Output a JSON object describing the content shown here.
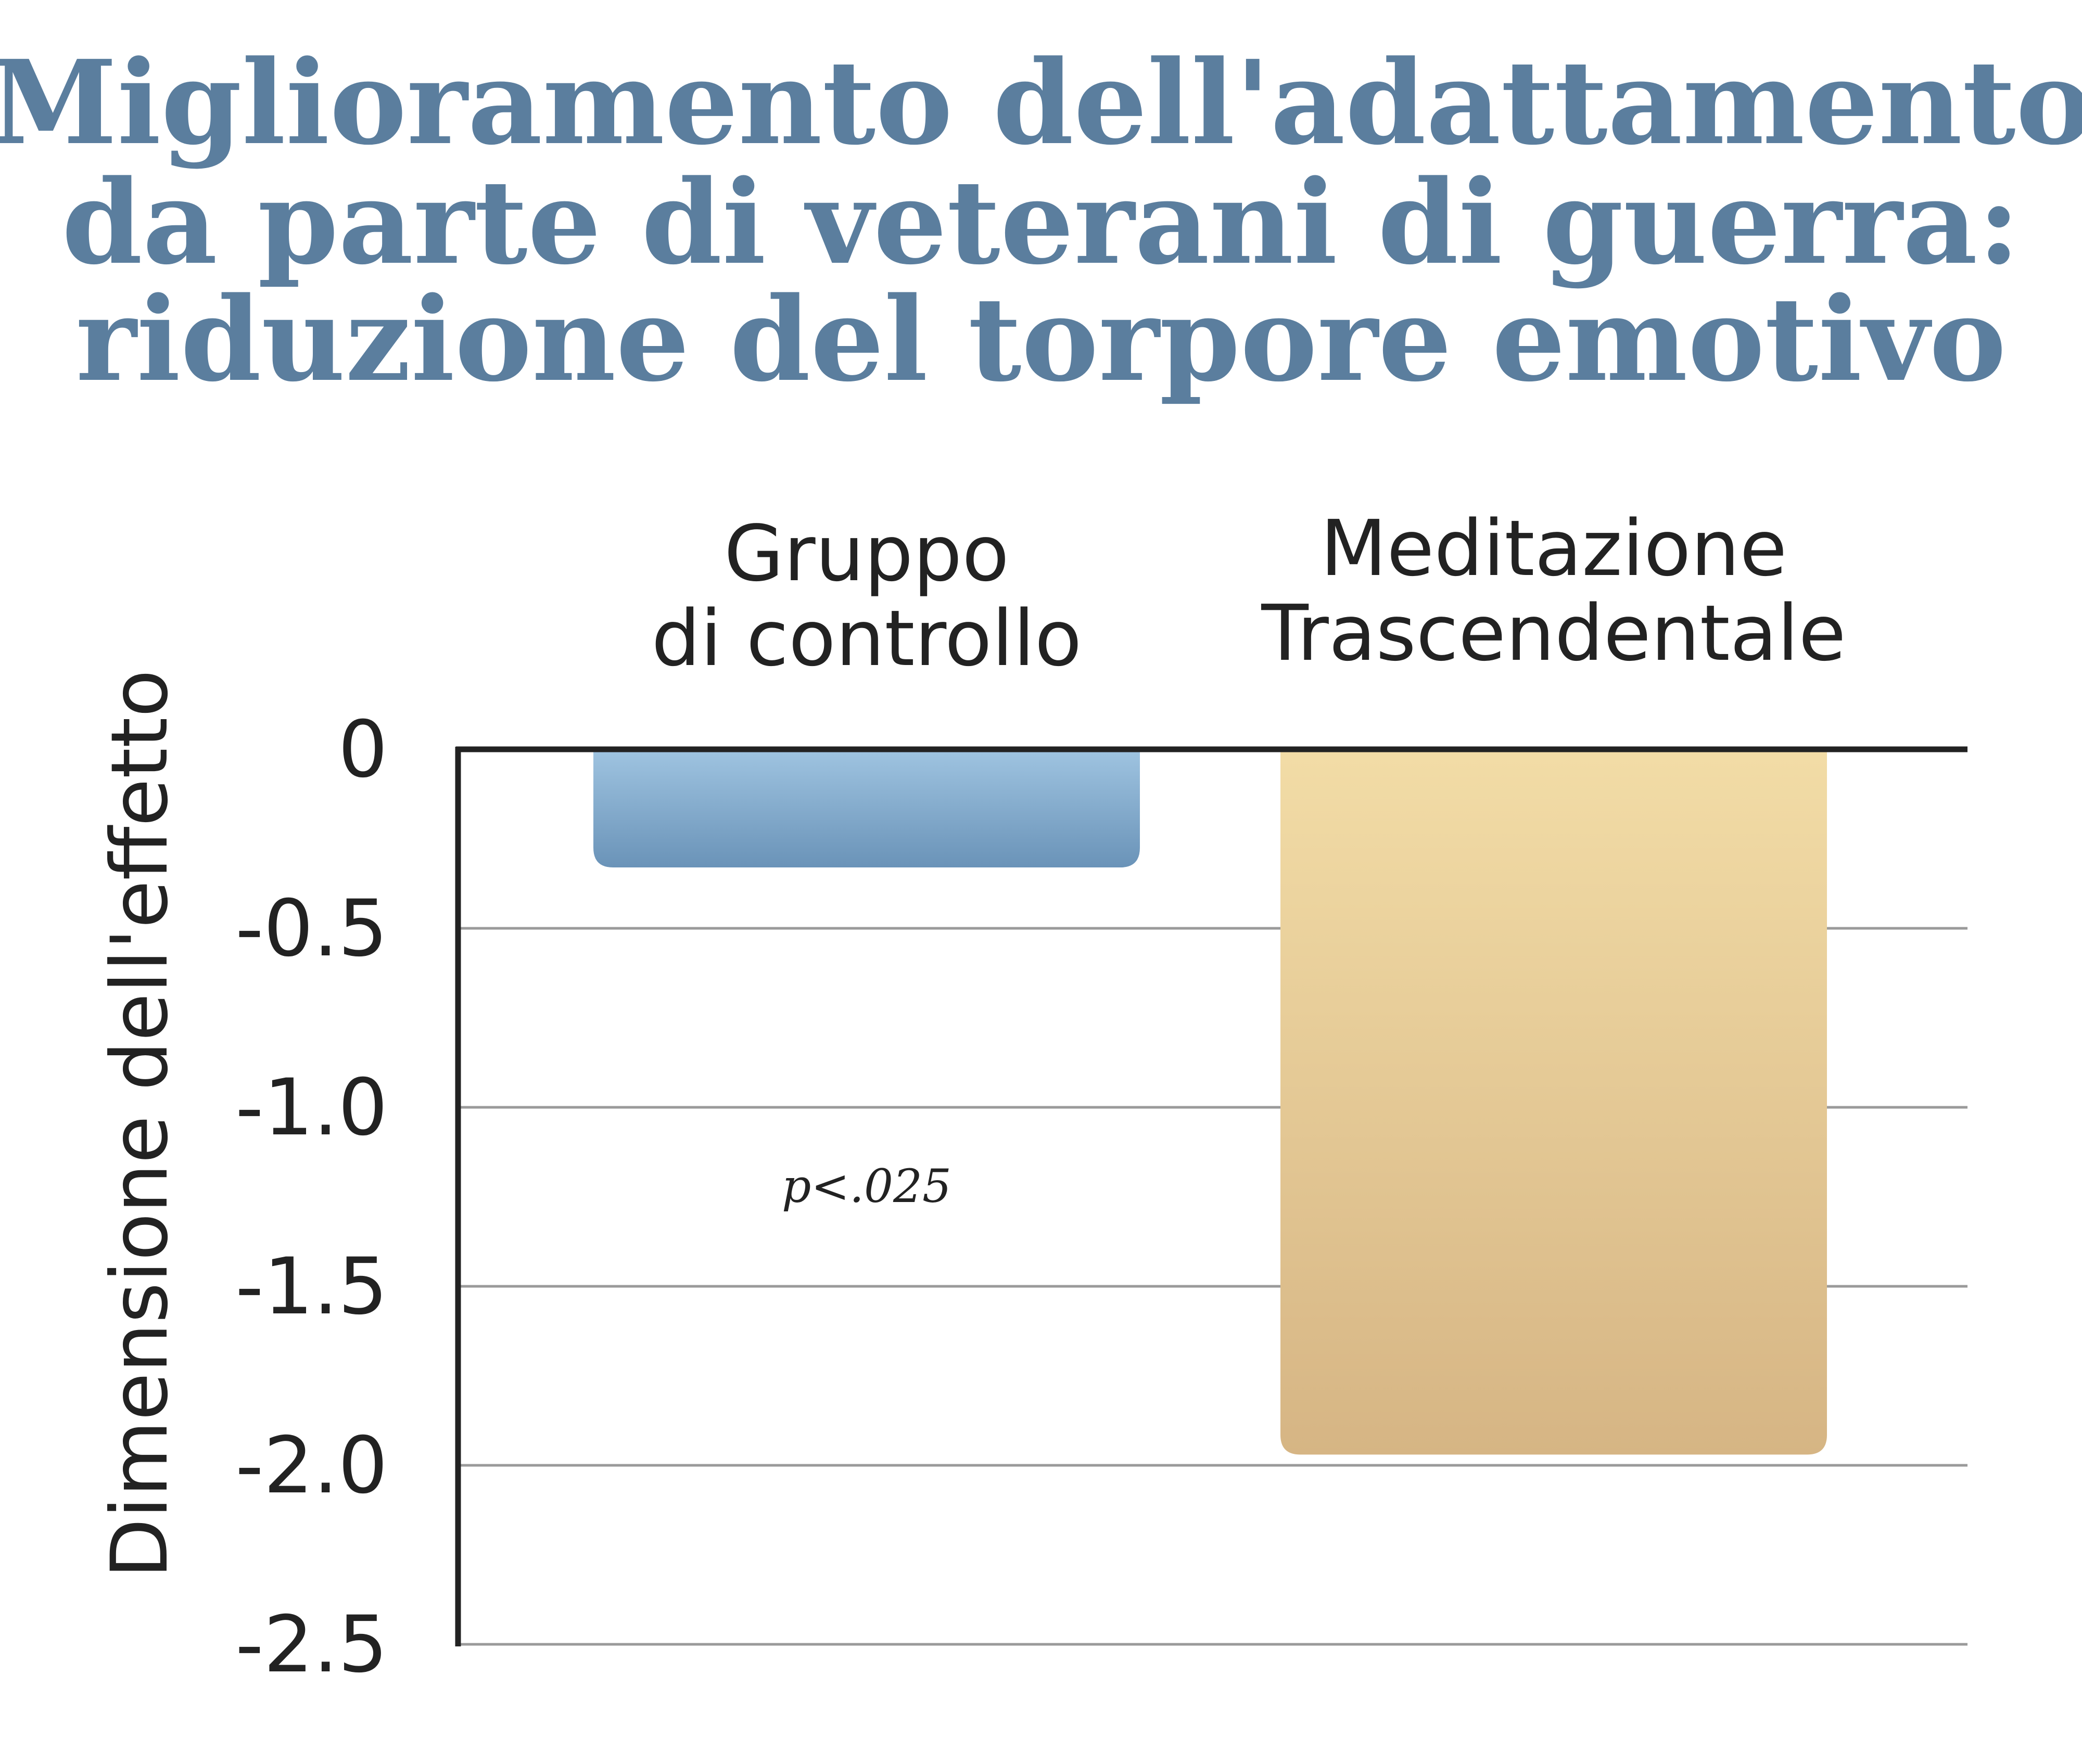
{
  "chart_data": {
    "type": "bar",
    "title_lines": [
      "Miglioramento dell'adattamento",
      "da parte di veterani di guerra:",
      "riduzione del torpore emotivo"
    ],
    "categories": [
      [
        "Gruppo",
        "di controllo"
      ],
      [
        "Meditazione",
        "Trascendentale"
      ]
    ],
    "values": [
      -0.33,
      -1.97
    ],
    "ylabel": "Dimensione dell'effetto",
    "ylim": [
      -2.5,
      0
    ],
    "yticks": [
      0,
      -0.5,
      -1.0,
      -1.5,
      -2.0,
      -2.5
    ],
    "ytick_labels": [
      "0",
      "-0.5",
      "-1.0",
      "-1.5",
      "-2.0",
      "-2.5"
    ],
    "annotation": "p<.025",
    "grid": true,
    "colors": {
      "title": "#5b7e9e",
      "bar_control_top": "#9ec3e0",
      "bar_control_bottom": "#6a93b8",
      "bar_tm_top": "#f2dca6",
      "bar_tm_bottom": "#d6b584",
      "axis": "#222222",
      "grid": "#9a9a9a",
      "text": "#222222"
    }
  }
}
